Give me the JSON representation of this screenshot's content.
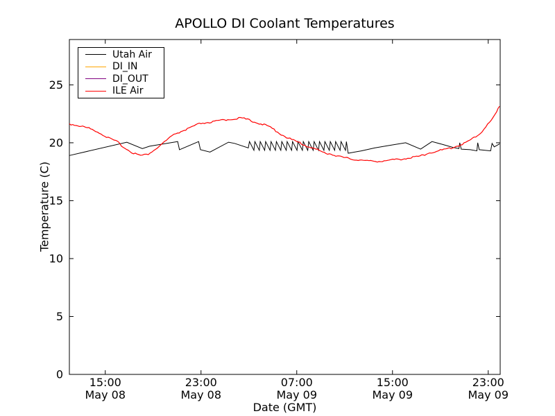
{
  "chart_data": {
    "type": "line",
    "title": "APOLLO DI Coolant Temperatures",
    "xlabel": "Date (GMT)",
    "ylabel": "Temperature (C)",
    "x_unit": "hours_since_May_08_12:00_GMT",
    "xlim": [
      0,
      36
    ],
    "ylim": [
      0,
      28.9
    ],
    "grid": false,
    "legend_position": "upper left",
    "yticks": [
      0,
      5,
      10,
      15,
      20,
      25
    ],
    "xticks": [
      {
        "h": 3,
        "time": "15:00",
        "date": "May 08"
      },
      {
        "h": 11,
        "time": "23:00",
        "date": "May 08"
      },
      {
        "h": 19,
        "time": "07:00",
        "date": "May 09"
      },
      {
        "h": 27,
        "time": "15:00",
        "date": "May 09"
      },
      {
        "h": 35,
        "time": "23:00",
        "date": "May 09"
      }
    ],
    "series": [
      {
        "name": "Utah Air",
        "color": "#000000",
        "style": "solid",
        "points": [
          [
            0,
            18.9
          ],
          [
            4.8,
            20.05
          ],
          [
            6.1,
            19.5
          ],
          [
            6.7,
            19.7
          ],
          [
            9.05,
            20.1
          ],
          [
            9.2,
            19.4
          ],
          [
            10.8,
            20.1
          ],
          [
            10.95,
            19.4
          ],
          [
            11.75,
            19.2
          ],
          [
            13.3,
            20.05
          ],
          [
            13.8,
            19.95
          ],
          [
            14.95,
            19.55
          ],
          [
            15.05,
            20.1
          ],
          [
            15.42,
            19.35
          ],
          [
            15.5,
            20.1
          ],
          [
            15.87,
            19.35
          ],
          [
            15.95,
            20.1
          ],
          [
            16.32,
            19.35
          ],
          [
            16.4,
            20.1
          ],
          [
            16.77,
            19.35
          ],
          [
            16.85,
            20.1
          ],
          [
            17.22,
            19.35
          ],
          [
            17.3,
            20.1
          ],
          [
            17.67,
            19.35
          ],
          [
            17.75,
            20.1
          ],
          [
            18.12,
            19.35
          ],
          [
            18.2,
            20.1
          ],
          [
            18.57,
            19.35
          ],
          [
            18.65,
            20.1
          ],
          [
            19.02,
            19.35
          ],
          [
            19.1,
            20.1
          ],
          [
            19.47,
            19.35
          ],
          [
            19.55,
            20.1
          ],
          [
            19.92,
            19.35
          ],
          [
            20.0,
            20.1
          ],
          [
            20.37,
            19.35
          ],
          [
            20.45,
            20.1
          ],
          [
            20.82,
            19.35
          ],
          [
            20.9,
            20.1
          ],
          [
            21.27,
            19.35
          ],
          [
            21.35,
            20.1
          ],
          [
            21.72,
            19.35
          ],
          [
            21.8,
            20.1
          ],
          [
            22.17,
            19.35
          ],
          [
            22.25,
            20.1
          ],
          [
            22.62,
            19.35
          ],
          [
            22.7,
            20.1
          ],
          [
            23.07,
            19.35
          ],
          [
            23.15,
            20.1
          ],
          [
            23.3,
            19.1
          ],
          [
            24.4,
            19.3
          ],
          [
            25.5,
            19.55
          ],
          [
            26.6,
            19.75
          ],
          [
            28.1,
            20.0
          ],
          [
            29.35,
            19.45
          ],
          [
            30.3,
            20.1
          ],
          [
            31.2,
            19.85
          ],
          [
            32.05,
            19.6
          ],
          [
            32.55,
            19.5
          ],
          [
            32.62,
            20.0
          ],
          [
            32.75,
            19.45
          ],
          [
            33.5,
            19.4
          ],
          [
            34.05,
            19.3
          ],
          [
            34.12,
            20.0
          ],
          [
            34.25,
            19.4
          ],
          [
            35.2,
            19.3
          ],
          [
            35.32,
            19.95
          ],
          [
            35.5,
            19.65
          ],
          [
            35.95,
            19.9
          ]
        ]
      },
      {
        "name": "DI_IN",
        "color": "#ffa500",
        "style": "solid",
        "points": []
      },
      {
        "name": "DI_OUT",
        "color": "#800080",
        "style": "solid",
        "points": []
      },
      {
        "name": "ILE Air",
        "color": "#ff0000",
        "style": "noisy",
        "points": [
          [
            0,
            21.6
          ],
          [
            0.7,
            21.45
          ],
          [
            1.5,
            21.25
          ],
          [
            2.2,
            21.0
          ],
          [
            2.8,
            20.65
          ],
          [
            3.4,
            20.3
          ],
          [
            4.05,
            20.0
          ],
          [
            4.64,
            19.5
          ],
          [
            5.22,
            19.15
          ],
          [
            5.8,
            18.9
          ],
          [
            6.1,
            18.85
          ],
          [
            6.6,
            19.0
          ],
          [
            7.2,
            19.4
          ],
          [
            7.8,
            19.9
          ],
          [
            8.4,
            20.4
          ],
          [
            8.9,
            20.75
          ],
          [
            10.0,
            21.2
          ],
          [
            11.0,
            21.65
          ],
          [
            12.0,
            21.75
          ],
          [
            12.7,
            21.9
          ],
          [
            13.5,
            22.0
          ],
          [
            14.0,
            22.07
          ],
          [
            14.6,
            22.05
          ],
          [
            15.2,
            21.85
          ],
          [
            16.0,
            21.6
          ],
          [
            16.8,
            21.3
          ],
          [
            17.4,
            20.9
          ],
          [
            18.0,
            20.5
          ],
          [
            19.0,
            20.05
          ],
          [
            19.8,
            19.7
          ],
          [
            20.6,
            19.4
          ],
          [
            21.3,
            19.1
          ],
          [
            22.0,
            18.95
          ],
          [
            22.8,
            18.7
          ],
          [
            23.6,
            18.55
          ],
          [
            24.4,
            18.45
          ],
          [
            24.9,
            18.4
          ],
          [
            25.3,
            18.35
          ],
          [
            26.3,
            18.4
          ],
          [
            27.3,
            18.5
          ],
          [
            28.4,
            18.65
          ],
          [
            29.3,
            18.8
          ],
          [
            30.1,
            19.1
          ],
          [
            31.0,
            19.3
          ],
          [
            31.9,
            19.5
          ],
          [
            32.7,
            19.8
          ],
          [
            33.4,
            20.1
          ],
          [
            34.1,
            20.6
          ],
          [
            34.5,
            20.95
          ],
          [
            34.8,
            21.35
          ],
          [
            35.1,
            21.7
          ],
          [
            35.4,
            22.1
          ],
          [
            35.7,
            22.6
          ],
          [
            35.95,
            23.15
          ]
        ]
      }
    ]
  }
}
